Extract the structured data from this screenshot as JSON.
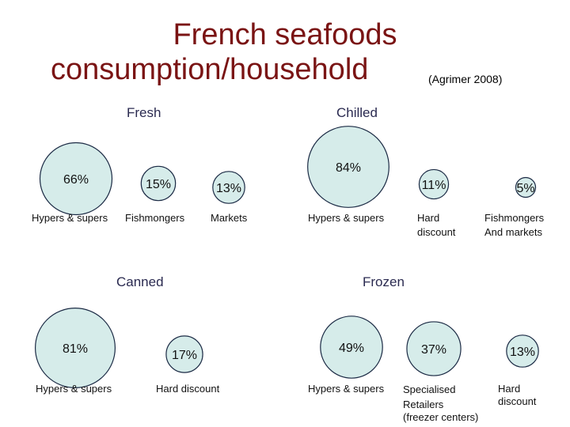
{
  "title": {
    "line1": "French seafoods",
    "line2": "consumption/household",
    "note": "(Agrimer 2008)"
  },
  "colors": {
    "title": "#7a1414",
    "bubble_fill": "#d6ecea",
    "bubble_stroke": "#1b2a44"
  },
  "chart_data": [
    {
      "type": "bubble",
      "title": "Fresh",
      "categories": [
        "Hypers & supers",
        "Fishmongers",
        "Markets"
      ],
      "values": [
        66,
        15,
        13
      ],
      "value_labels": [
        "66%",
        "15%",
        "13%"
      ]
    },
    {
      "type": "bubble",
      "title": "Chilled",
      "categories": [
        "Hypers & supers",
        "Hard discount",
        "Fishmongers And markets"
      ],
      "values": [
        84,
        11,
        5
      ],
      "value_labels": [
        "84%",
        "11%",
        "5%"
      ]
    },
    {
      "type": "bubble",
      "title": "Canned",
      "categories": [
        "Hypers & supers",
        "Hard discount"
      ],
      "values": [
        81,
        17
      ],
      "value_labels": [
        "81%",
        "17%"
      ]
    },
    {
      "type": "bubble",
      "title": "Frozen",
      "categories": [
        "Hypers & supers",
        "Specialised Retailers (freezer centers)",
        "Hard discount"
      ],
      "values": [
        49,
        37,
        13
      ],
      "value_labels": [
        "49%",
        "37%",
        "13%"
      ]
    }
  ]
}
